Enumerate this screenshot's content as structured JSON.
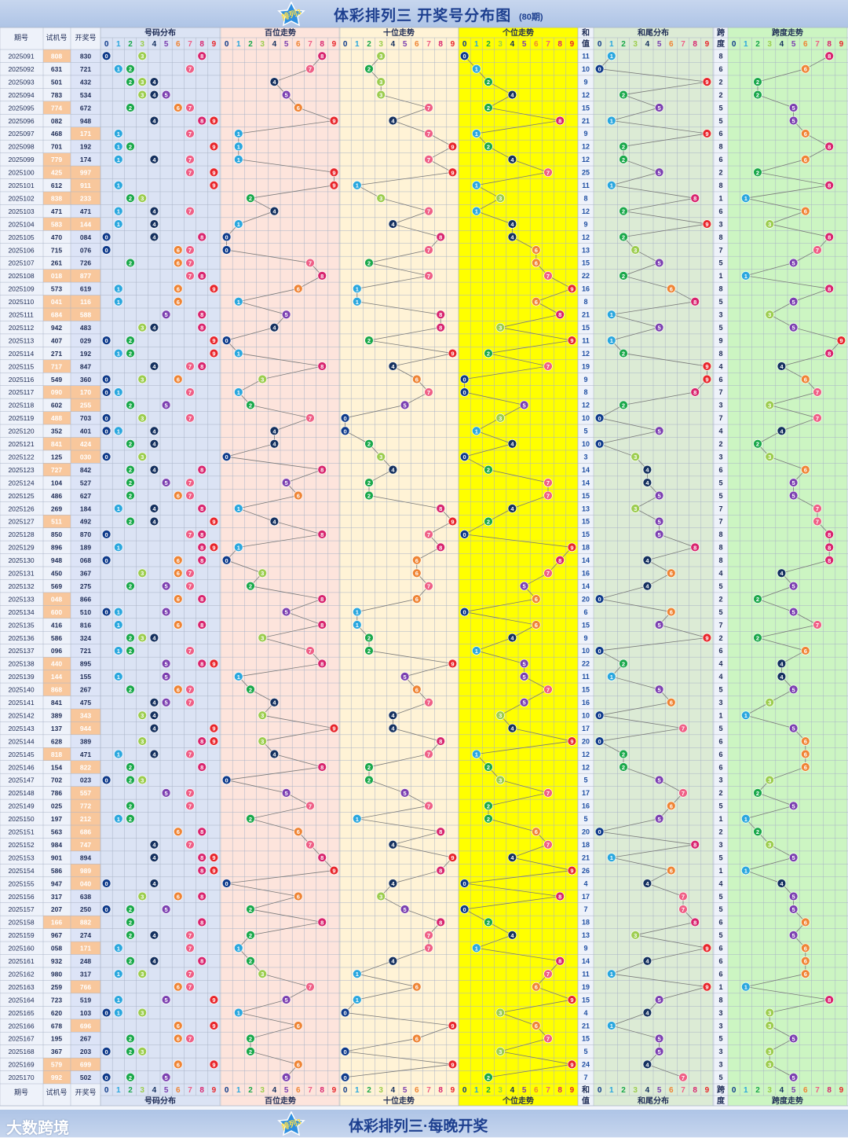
{
  "header": {
    "title": "体彩排列三 开奖号分布图",
    "subtitle": "(80期)",
    "logo_text": "排列3"
  },
  "footer": {
    "title": "体彩排列三·每晚开奖",
    "brand": "大数跨境",
    "logo_text": "排列3"
  },
  "columns": {
    "period": "期号",
    "trial": "试机号",
    "draw": "开奖号",
    "number_dist": "号码分布",
    "hundreds": "百位走势",
    "tens": "十位走势",
    "units": "个位走势",
    "sum_top": "和",
    "sum_bottom": "值",
    "sum_tail": "和尾分布",
    "span_top": "跨",
    "span_bottom": "度",
    "span_dist": "跨度走势"
  },
  "digits": [
    "0",
    "1",
    "2",
    "3",
    "4",
    "5",
    "6",
    "7",
    "8",
    "9"
  ],
  "colors": {
    "ball": [
      "#0e3a8a",
      "#2aa7de",
      "#19a84a",
      "#9ccd4e",
      "#14305f",
      "#7b3fb0",
      "#ef8434",
      "#ef5f86",
      "#d8246e",
      "#e8252b"
    ],
    "panel_dist": "#dbe3f4",
    "panel_hundreds": "#fde4dc",
    "panel_tens": "#fff3d6",
    "panel_units": "#ffff00",
    "panel_tail": "#dcebd5",
    "panel_span": "#ccf5c2",
    "highlight": "#f8c79c",
    "grid": "#a9b3c6",
    "line": "#7a7a7a"
  },
  "chart_data": {
    "type": "table",
    "periods": [
      "2025091",
      "2025092",
      "2025093",
      "2025094",
      "2025095",
      "2025096",
      "2025097",
      "2025098",
      "2025099",
      "2025100",
      "2025101",
      "2025102",
      "2025103",
      "2025104",
      "2025105",
      "2025106",
      "2025107",
      "2025108",
      "2025109",
      "2025110",
      "2025111",
      "2025112",
      "2025113",
      "2025114",
      "2025115",
      "2025116",
      "2025117",
      "2025118",
      "2025119",
      "2025120",
      "2025121",
      "2025122",
      "2025123",
      "2025124",
      "2025125",
      "2025126",
      "2025127",
      "2025128",
      "2025129",
      "2025130",
      "2025131",
      "2025132",
      "2025133",
      "2025134",
      "2025135",
      "2025136",
      "2025137",
      "2025138",
      "2025139",
      "2025140",
      "2025141",
      "2025142",
      "2025143",
      "2025144",
      "2025145",
      "2025146",
      "2025147",
      "2025148",
      "2025149",
      "2025150",
      "2025151",
      "2025152",
      "2025153",
      "2025154",
      "2025155",
      "2025156",
      "2025157",
      "2025158",
      "2025159",
      "2025160",
      "2025161",
      "2025162",
      "2025163",
      "2025164",
      "2025165",
      "2025166",
      "2025167",
      "2025168",
      "2025169",
      "2025170"
    ],
    "trial": [
      "808",
      "631",
      "501",
      "783",
      "774",
      "082",
      "468",
      "701",
      "779",
      "425",
      "612",
      "838",
      "471",
      "583",
      "470",
      "715",
      "261",
      "018",
      "573",
      "041",
      "684",
      "942",
      "407",
      "271",
      "717",
      "549",
      "090",
      "602",
      "488",
      "352",
      "841",
      "125",
      "727",
      "104",
      "486",
      "269",
      "511",
      "850",
      "896",
      "948",
      "450",
      "569",
      "048",
      "600",
      "416",
      "586",
      "096",
      "440",
      "144",
      "868",
      "841",
      "389",
      "137",
      "628",
      "818",
      "154",
      "702",
      "786",
      "025",
      "197",
      "563",
      "984",
      "901",
      "586",
      "947",
      "317",
      "207",
      "166",
      "967",
      "058",
      "932",
      "980",
      "259",
      "723",
      "620",
      "678",
      "195",
      "367",
      "579",
      "992"
    ],
    "draw": [
      "830",
      "721",
      "432",
      "534",
      "672",
      "948",
      "171",
      "192",
      "174",
      "997",
      "911",
      "233",
      "471",
      "144",
      "084",
      "076",
      "726",
      "877",
      "619",
      "116",
      "588",
      "483",
      "029",
      "192",
      "847",
      "360",
      "170",
      "255",
      "703",
      "401",
      "424",
      "030",
      "842",
      "527",
      "627",
      "184",
      "492",
      "870",
      "189",
      "068",
      "367",
      "275",
      "866",
      "510",
      "816",
      "324",
      "721",
      "895",
      "155",
      "267",
      "475",
      "343",
      "944",
      "389",
      "471",
      "822",
      "023",
      "557",
      "772",
      "212",
      "686",
      "747",
      "894",
      "989",
      "040",
      "638",
      "250",
      "882",
      "274",
      "171",
      "248",
      "317",
      "766",
      "519",
      "103",
      "696",
      "267",
      "203",
      "699",
      "502"
    ],
    "sum": [
      11,
      10,
      9,
      12,
      15,
      21,
      9,
      12,
      12,
      25,
      11,
      8,
      12,
      9,
      12,
      13,
      15,
      22,
      16,
      8,
      21,
      15,
      11,
      12,
      19,
      9,
      8,
      12,
      10,
      5,
      10,
      3,
      14,
      14,
      15,
      13,
      15,
      15,
      18,
      14,
      16,
      14,
      20,
      6,
      15,
      9,
      10,
      22,
      11,
      15,
      16,
      10,
      17,
      20,
      12,
      12,
      5,
      17,
      16,
      5,
      20,
      18,
      21,
      26,
      4,
      17,
      7,
      18,
      13,
      9,
      14,
      11,
      19,
      15,
      4,
      21,
      15,
      5,
      24,
      7
    ],
    "span": [
      8,
      6,
      2,
      2,
      5,
      5,
      6,
      8,
      6,
      2,
      8,
      1,
      6,
      3,
      8,
      7,
      5,
      1,
      8,
      5,
      3,
      5,
      9,
      8,
      4,
      6,
      7,
      3,
      7,
      4,
      2,
      3,
      6,
      5,
      5,
      7,
      7,
      8,
      8,
      8,
      4,
      5,
      2,
      5,
      7,
      2,
      6,
      4,
      4,
      5,
      3,
      1,
      5,
      6,
      6,
      6,
      3,
      2,
      5,
      1,
      2,
      3,
      5,
      1,
      4,
      5,
      5,
      6,
      5,
      6,
      6,
      6,
      1,
      8,
      3,
      3,
      5,
      3,
      3,
      5
    ],
    "trial_highlighted": [
      "2025091",
      "2025095",
      "2025099",
      "2025100",
      "2025102",
      "2025104",
      "2025108",
      "2025110",
      "2025111",
      "2025115",
      "2025117",
      "2025119",
      "2025121",
      "2025123",
      "2025127",
      "2025133",
      "2025134",
      "2025138",
      "2025139",
      "2025140",
      "2025145",
      "2025158",
      "2025169",
      "2025170"
    ],
    "draw_highlighted": [
      "2025097",
      "2025100",
      "2025101",
      "2025102",
      "2025104",
      "2025108",
      "2025110",
      "2025111",
      "2025117",
      "2025118",
      "2025121",
      "2025122",
      "2025142",
      "2025143",
      "2025146",
      "2025148",
      "2025149",
      "2025150",
      "2025151",
      "2025152",
      "2025154",
      "2025155",
      "2025158",
      "2025160",
      "2025163",
      "2025166",
      "2025169"
    ]
  }
}
